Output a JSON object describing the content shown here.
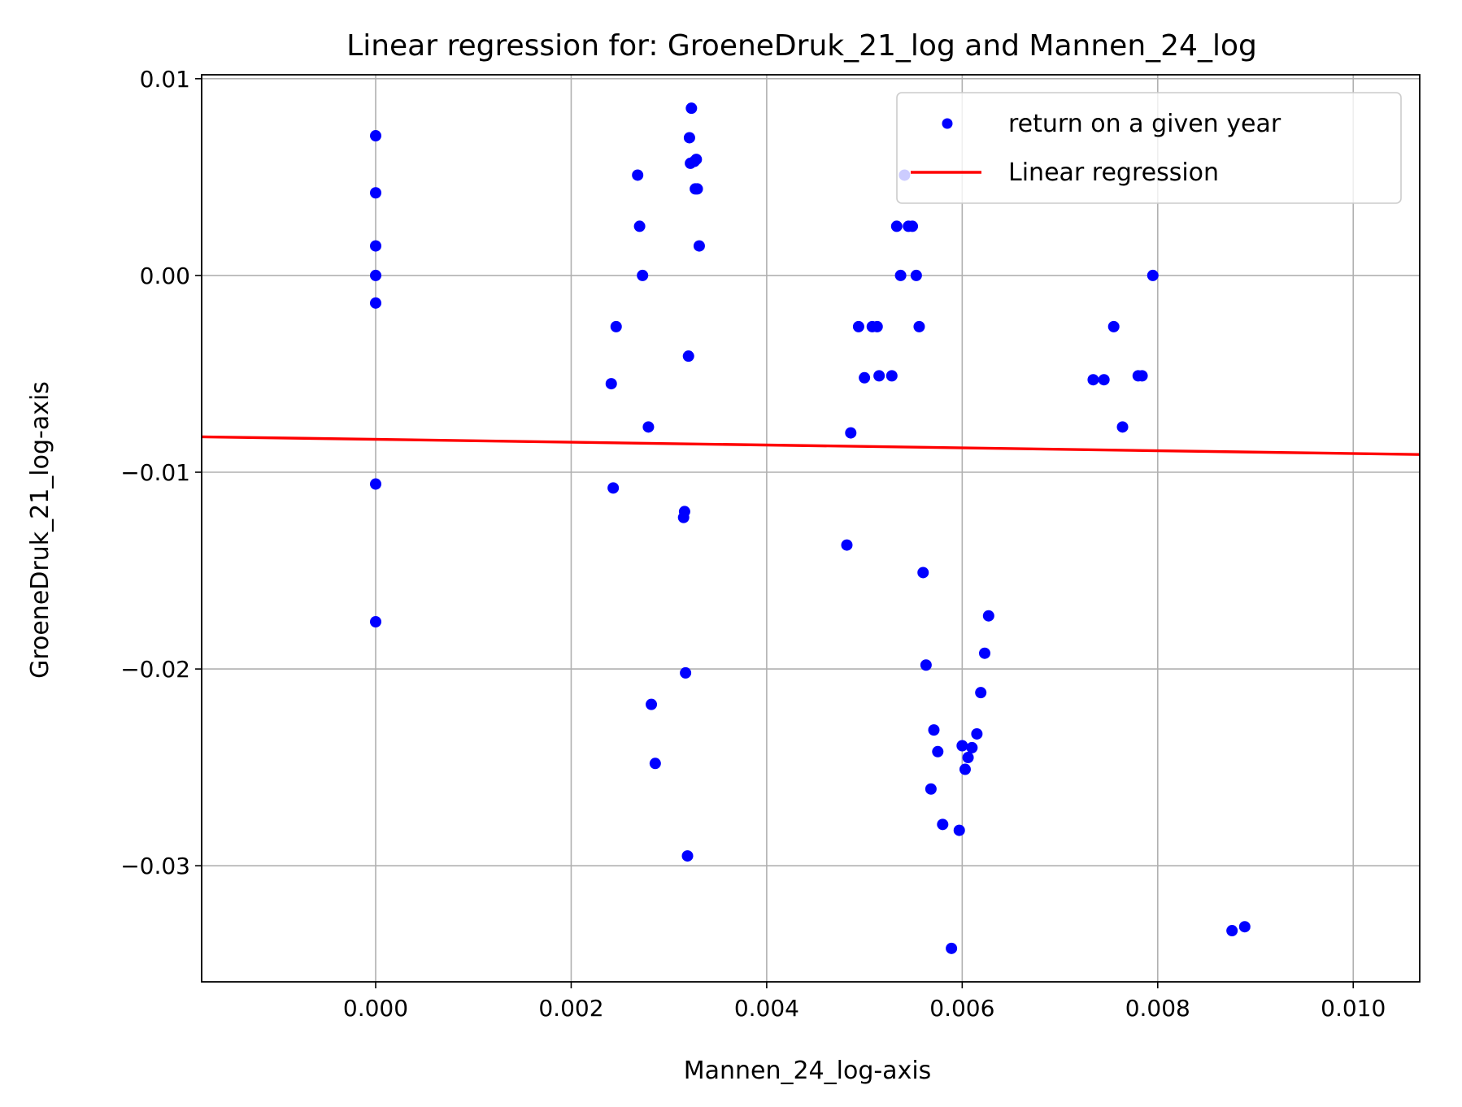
{
  "chart_data": {
    "type": "scatter",
    "title": "Linear regression for: GroeneDruk_21_log and Mannen_24_log",
    "xlabel": "Mannen_24_log-axis",
    "ylabel": "GroeneDruk_21_log-axis",
    "xlim": [
      -0.00178,
      0.01068
    ],
    "ylim": [
      -0.0359,
      0.0102
    ],
    "x_ticks": [
      0.0,
      0.002,
      0.004,
      0.006,
      0.008,
      0.01
    ],
    "x_tick_labels": [
      "0.000",
      "0.002",
      "0.004",
      "0.006",
      "0.008",
      "0.010"
    ],
    "y_ticks": [
      0.01,
      0.0,
      -0.01,
      -0.02,
      -0.03
    ],
    "y_tick_labels": [
      "0.01",
      "0.00",
      "−0.01",
      "−0.02",
      "−0.03"
    ],
    "grid": true,
    "legend_position": "top-right",
    "colors": {
      "scatter": "#0000ff",
      "regression": "#ff0000"
    },
    "series": [
      {
        "name": "return on a given year",
        "kind": "scatter",
        "points": [
          [
            0.0,
            0.0071
          ],
          [
            0.0,
            0.0042
          ],
          [
            0.0,
            0.0015
          ],
          [
            0.0,
            0.0
          ],
          [
            0.0,
            -0.0014
          ],
          [
            0.0,
            -0.0106
          ],
          [
            0.0,
            -0.0176
          ],
          [
            0.00241,
            -0.0055
          ],
          [
            0.00243,
            -0.0108
          ],
          [
            0.00246,
            -0.0026
          ],
          [
            0.00268,
            0.0051
          ],
          [
            0.0027,
            0.0025
          ],
          [
            0.00273,
            0.0
          ],
          [
            0.00279,
            -0.0077
          ],
          [
            0.00282,
            -0.0218
          ],
          [
            0.00286,
            -0.0248
          ],
          [
            0.00315,
            -0.0123
          ],
          [
            0.00316,
            -0.012
          ],
          [
            0.00317,
            -0.0202
          ],
          [
            0.00319,
            -0.0295
          ],
          [
            0.0032,
            -0.0041
          ],
          [
            0.00321,
            0.007
          ],
          [
            0.00322,
            0.0057
          ],
          [
            0.00323,
            0.0085
          ],
          [
            0.00326,
            0.0058
          ],
          [
            0.00327,
            0.0044
          ],
          [
            0.00328,
            0.0059
          ],
          [
            0.00329,
            0.0044
          ],
          [
            0.00331,
            0.0015
          ],
          [
            0.00482,
            -0.0137
          ],
          [
            0.00486,
            -0.008
          ],
          [
            0.00494,
            -0.0026
          ],
          [
            0.005,
            -0.0052
          ],
          [
            0.00508,
            -0.0026
          ],
          [
            0.00513,
            -0.0026
          ],
          [
            0.00515,
            -0.0051
          ],
          [
            0.00528,
            -0.0051
          ],
          [
            0.00533,
            0.0025
          ],
          [
            0.00537,
            0.0
          ],
          [
            0.00541,
            0.0051
          ],
          [
            0.00545,
            0.0025
          ],
          [
            0.00549,
            0.0025
          ],
          [
            0.00553,
            0.0
          ],
          [
            0.00556,
            -0.0026
          ],
          [
            0.0056,
            -0.0151
          ],
          [
            0.00563,
            -0.0198
          ],
          [
            0.00568,
            -0.0261
          ],
          [
            0.00571,
            -0.0231
          ],
          [
            0.00575,
            -0.0242
          ],
          [
            0.0058,
            -0.0279
          ],
          [
            0.00589,
            -0.0342
          ],
          [
            0.00597,
            -0.0282
          ],
          [
            0.006,
            -0.0239
          ],
          [
            0.00603,
            -0.0251
          ],
          [
            0.00606,
            -0.0245
          ],
          [
            0.0061,
            -0.024
          ],
          [
            0.00615,
            -0.0233
          ],
          [
            0.00619,
            -0.0212
          ],
          [
            0.00623,
            -0.0192
          ],
          [
            0.00627,
            -0.0173
          ],
          [
            0.00734,
            -0.0053
          ],
          [
            0.00745,
            -0.0053
          ],
          [
            0.00755,
            -0.0026
          ],
          [
            0.00764,
            -0.0077
          ],
          [
            0.0078,
            -0.0051
          ],
          [
            0.00784,
            -0.0051
          ],
          [
            0.00795,
            0.0
          ],
          [
            0.00876,
            -0.0333
          ],
          [
            0.00889,
            -0.0331
          ]
        ]
      },
      {
        "name": "Linear regression",
        "kind": "line",
        "x": [
          -0.00178,
          0.01068
        ],
        "y": [
          -0.0082,
          -0.0091
        ]
      }
    ]
  }
}
